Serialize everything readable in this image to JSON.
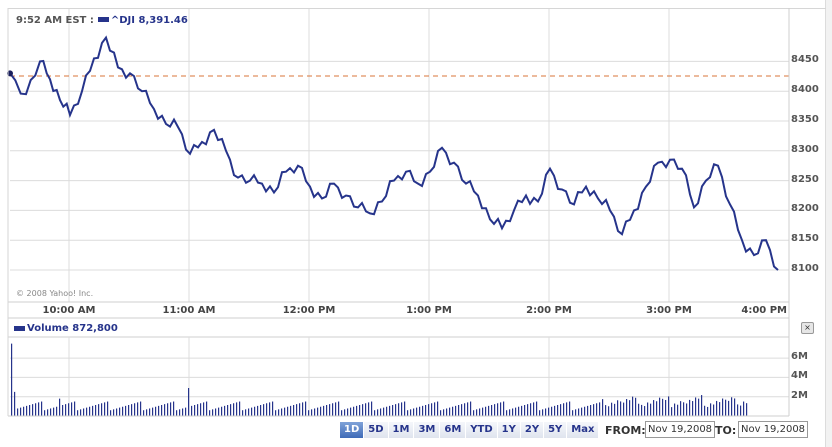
{
  "header": {
    "time": "9:52 AM EST :",
    "symbol": "^DJI",
    "value": "8,391.46"
  },
  "copyright": "© 2008 Yahoo! Inc.",
  "volume_header": {
    "label": "Volume",
    "value": "872,800"
  },
  "close_button": "×",
  "range_buttons": [
    "1D",
    "5D",
    "1M",
    "3M",
    "6M",
    "YTD",
    "1Y",
    "2Y",
    "5Y",
    "Max"
  ],
  "active_range": "1D",
  "date_range": {
    "from_label": "FROM:",
    "from_value": "Nov 19,2008",
    "to_label": "TO:",
    "to_value": "Nov 19,2008"
  },
  "colors": {
    "line": "#26348b",
    "prev_close": "#d9763a",
    "grid": "#dcdcdc"
  },
  "chart_data": [
    {
      "type": "line",
      "title": "^DJI intraday",
      "xlabel": "",
      "ylabel": "",
      "x_ticks": [
        "10:00 AM",
        "11:00 AM",
        "12:00 PM",
        "1:00 PM",
        "2:00 PM",
        "3:00 PM",
        "4:00 PM"
      ],
      "y_ticks": [
        8100,
        8150,
        8200,
        8250,
        8300,
        8350,
        8400,
        8450
      ],
      "ylim": [
        8070,
        8510
      ],
      "grid": true,
      "previous_close": 8425,
      "series": [
        {
          "name": "^DJI",
          "x": [
            "9:30",
            "9:38",
            "9:45",
            "9:50",
            "9:55",
            "10:00",
            "10:06",
            "10:12",
            "10:18",
            "10:24",
            "10:30",
            "10:36",
            "10:42",
            "10:48",
            "10:54",
            "11:00",
            "11:06",
            "11:12",
            "11:18",
            "11:24",
            "11:30",
            "11:36",
            "11:42",
            "11:48",
            "11:54",
            "12:00",
            "12:06",
            "12:12",
            "12:18",
            "12:24",
            "12:30",
            "12:36",
            "12:42",
            "12:48",
            "12:54",
            "13:00",
            "13:06",
            "13:12",
            "13:18",
            "13:24",
            "13:30",
            "13:36",
            "13:42",
            "13:48",
            "13:54",
            "14:00",
            "14:06",
            "14:12",
            "14:18",
            "14:24",
            "14:30",
            "14:36",
            "14:42",
            "14:48",
            "14:54",
            "15:00",
            "15:06",
            "15:12",
            "15:18",
            "15:24",
            "15:30",
            "15:36",
            "15:42",
            "15:48",
            "15:54"
          ],
          "values": [
            8430,
            8395,
            8450,
            8420,
            8385,
            8360,
            8400,
            8455,
            8490,
            8440,
            8430,
            8400,
            8370,
            8345,
            8340,
            8295,
            8315,
            8335,
            8300,
            8255,
            8250,
            8245,
            8230,
            8265,
            8275,
            8240,
            8220,
            8245,
            8225,
            8205,
            8195,
            8215,
            8250,
            8265,
            8245,
            8265,
            8305,
            8280,
            8245,
            8225,
            8185,
            8170,
            8200,
            8225,
            8215,
            8270,
            8235,
            8210,
            8240,
            8220,
            8200,
            8160,
            8200,
            8240,
            8280,
            8285,
            8270,
            8205,
            8250,
            8275,
            8210,
            8150,
            8125,
            8150,
            8100
          ]
        }
      ]
    },
    {
      "type": "bar",
      "title": "Volume",
      "y_ticks": [
        "2M",
        "4M",
        "6M"
      ],
      "ylim": [
        0,
        7000000
      ],
      "notable": {
        "9:30": 7500000,
        "9:31": 2500000,
        "10:58": 2300000,
        "12:00": 2300000
      },
      "typical_range": [
        500000,
        1500000
      ]
    }
  ]
}
